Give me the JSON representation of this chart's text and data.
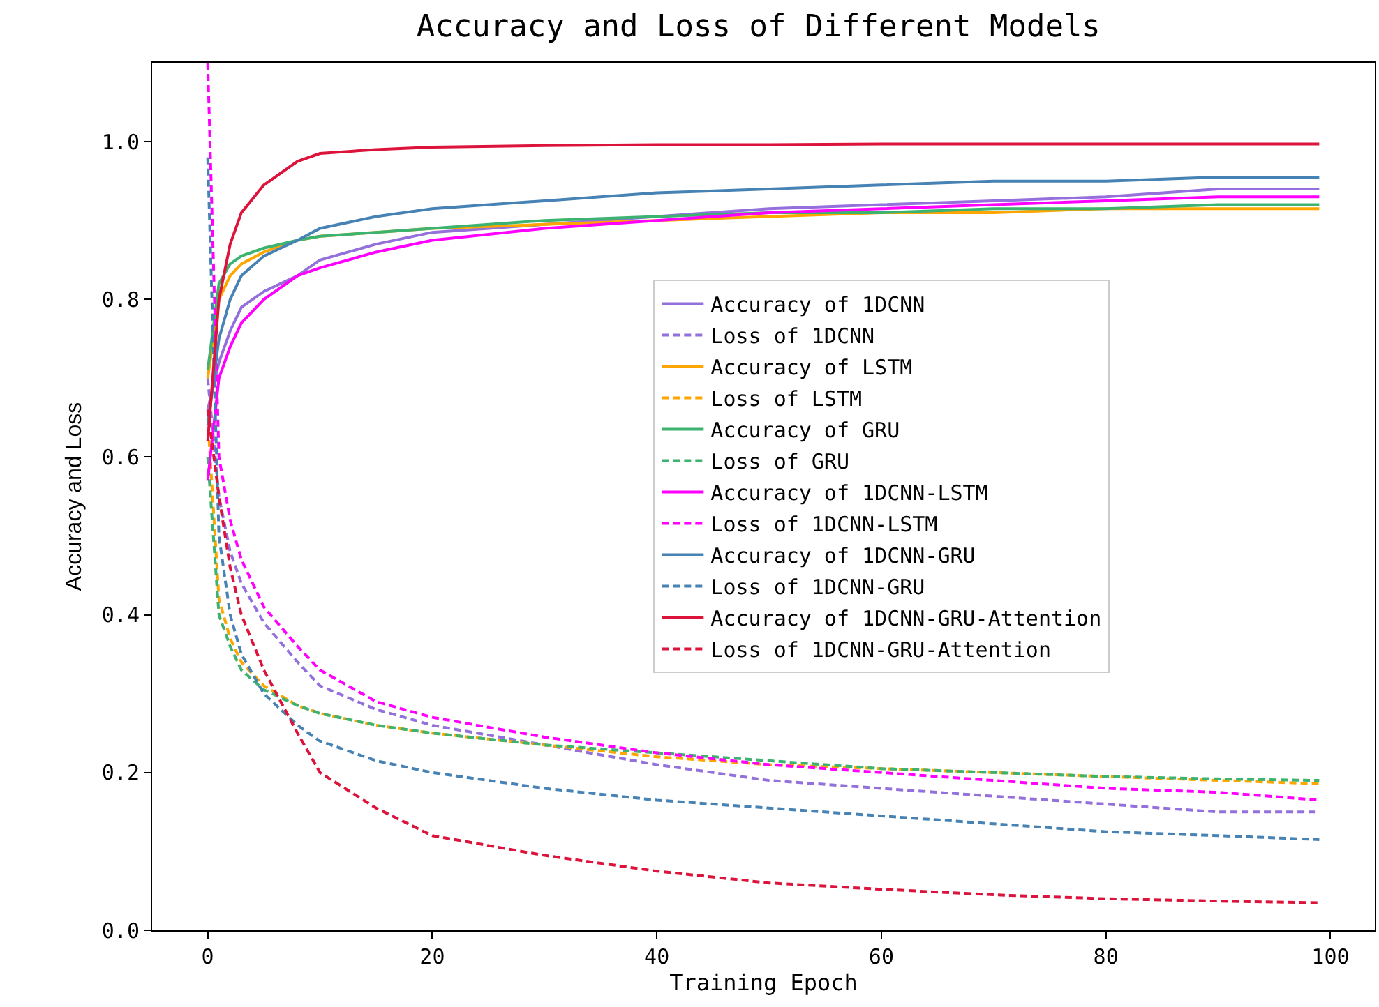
{
  "chart_data": {
    "type": "line",
    "title": "Accuracy and Loss of Different Models",
    "xlabel": "Training Epoch",
    "ylabel": "Accuracy and Loss",
    "x": [
      0,
      1,
      2,
      3,
      5,
      8,
      10,
      15,
      20,
      30,
      40,
      50,
      60,
      70,
      80,
      90,
      99
    ],
    "xlim": [
      -4.95,
      103.95
    ],
    "xticks": [
      0,
      20,
      40,
      60,
      80,
      100
    ],
    "ylim": [
      0,
      1.1
    ],
    "yticks": [
      {
        "value": 0,
        "label": "0.0"
      },
      {
        "value": 0.2,
        "label": "0.2"
      },
      {
        "value": 0.4,
        "label": "0.4"
      },
      {
        "value": 0.6,
        "label": "0.6"
      },
      {
        "value": 0.8,
        "label": "0.8"
      },
      {
        "value": 1.0,
        "label": "1.0"
      }
    ],
    "grid": false,
    "legend": "right",
    "marker": "none",
    "series": [
      {
        "name": "Accuracy of 1DCNN",
        "color": "#9370db",
        "line_style": "solid",
        "values": [
          0.66,
          0.72,
          0.76,
          0.79,
          0.81,
          0.83,
          0.85,
          0.87,
          0.885,
          0.895,
          0.905,
          0.915,
          0.92,
          0.925,
          0.93,
          0.94,
          0.94
        ]
      },
      {
        "name": "Loss of 1DCNN",
        "color": "#9370db",
        "line_style": "dashed",
        "values": [
          0.7,
          0.55,
          0.48,
          0.44,
          0.39,
          0.34,
          0.31,
          0.28,
          0.26,
          0.235,
          0.21,
          0.19,
          0.18,
          0.17,
          0.16,
          0.15,
          0.15
        ]
      },
      {
        "name": "Accuracy of LSTM",
        "color": "#ffa500",
        "line_style": "solid",
        "values": [
          0.7,
          0.8,
          0.83,
          0.845,
          0.86,
          0.875,
          0.88,
          0.885,
          0.89,
          0.895,
          0.9,
          0.905,
          0.91,
          0.91,
          0.915,
          0.915,
          0.915
        ]
      },
      {
        "name": "Loss of LSTM",
        "color": "#ffa500",
        "line_style": "dashed",
        "values": [
          0.65,
          0.42,
          0.37,
          0.34,
          0.31,
          0.285,
          0.275,
          0.26,
          0.25,
          0.235,
          0.22,
          0.21,
          0.205,
          0.2,
          0.195,
          0.19,
          0.186
        ]
      },
      {
        "name": "Accuracy of GRU",
        "color": "#3cb371",
        "line_style": "solid",
        "values": [
          0.71,
          0.82,
          0.845,
          0.855,
          0.865,
          0.875,
          0.88,
          0.885,
          0.89,
          0.9,
          0.905,
          0.91,
          0.91,
          0.915,
          0.915,
          0.92,
          0.92
        ]
      },
      {
        "name": "Loss of GRU",
        "color": "#3cb371",
        "line_style": "dashed",
        "values": [
          0.6,
          0.4,
          0.36,
          0.33,
          0.305,
          0.285,
          0.275,
          0.26,
          0.25,
          0.235,
          0.225,
          0.215,
          0.205,
          0.2,
          0.195,
          0.192,
          0.19
        ]
      },
      {
        "name": "Accuracy of 1DCNN-LSTM",
        "color": "#ff00ff",
        "line_style": "solid",
        "values": [
          0.57,
          0.7,
          0.74,
          0.77,
          0.8,
          0.83,
          0.84,
          0.86,
          0.875,
          0.89,
          0.9,
          0.91,
          0.915,
          0.92,
          0.925,
          0.93,
          0.93
        ]
      },
      {
        "name": "Loss of 1DCNN-LSTM",
        "color": "#ff00ff",
        "line_style": "dashed",
        "values": [
          1.1,
          0.6,
          0.52,
          0.47,
          0.41,
          0.36,
          0.33,
          0.29,
          0.27,
          0.245,
          0.225,
          0.21,
          0.2,
          0.19,
          0.18,
          0.175,
          0.165
        ]
      },
      {
        "name": "Accuracy of 1DCNN-GRU",
        "color": "#4682b4",
        "line_style": "solid",
        "values": [
          0.64,
          0.75,
          0.8,
          0.83,
          0.855,
          0.875,
          0.89,
          0.905,
          0.915,
          0.925,
          0.935,
          0.94,
          0.945,
          0.95,
          0.95,
          0.955,
          0.955
        ]
      },
      {
        "name": "Loss of 1DCNN-GRU",
        "color": "#4682b4",
        "line_style": "dashed",
        "values": [
          0.98,
          0.5,
          0.4,
          0.35,
          0.3,
          0.26,
          0.24,
          0.215,
          0.2,
          0.18,
          0.165,
          0.155,
          0.145,
          0.135,
          0.125,
          0.12,
          0.115
        ]
      },
      {
        "name": "Accuracy of 1DCNN-GRU-Attention",
        "color": "#dc143c",
        "line_style": "solid",
        "values": [
          0.62,
          0.8,
          0.87,
          0.91,
          0.945,
          0.975,
          0.985,
          0.99,
          0.993,
          0.995,
          0.996,
          0.996,
          0.997,
          0.997,
          0.997,
          0.997,
          0.997
        ]
      },
      {
        "name": "Loss of 1DCNN-GRU-Attention",
        "color": "#dc143c",
        "line_style": "dashed",
        "values": [
          0.66,
          0.55,
          0.46,
          0.4,
          0.33,
          0.25,
          0.2,
          0.155,
          0.12,
          0.095,
          0.075,
          0.06,
          0.052,
          0.045,
          0.04,
          0.037,
          0.035
        ]
      }
    ]
  }
}
